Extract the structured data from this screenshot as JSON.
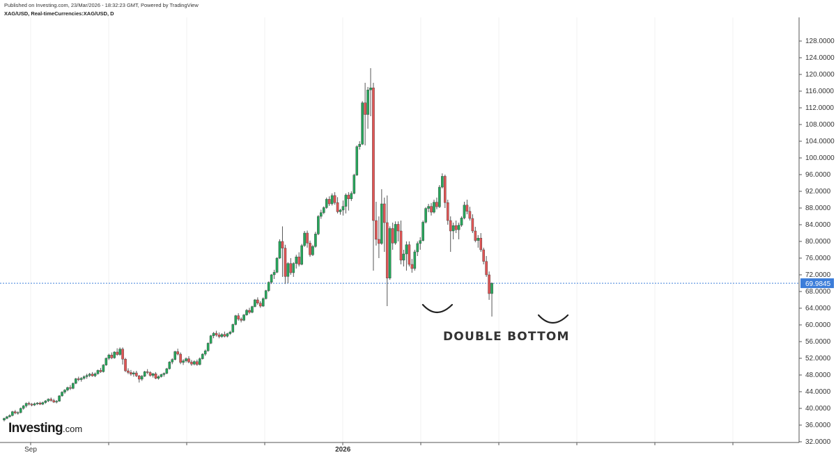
{
  "header": {
    "published": "Published on Investing.com, 23/Mar/2026 - 18:32:23 GMT, Powered by TradingView",
    "symbol_line": "XAG/USD, Real-timeCurrencies:XAG/USD, D"
  },
  "logo": {
    "main": "Investing",
    "suffix": ".com"
  },
  "annotation": {
    "text": "DOUBLE BOTTOM"
  },
  "colors": {
    "up": "#26a65b",
    "down": "#e05555",
    "wick": "#555555",
    "price_line": "#3c7dd9",
    "price_badge": "#3c7dd9",
    "axis_line": "#555555"
  },
  "chart_data": {
    "type": "candlestick",
    "title": "XAG/USD, Real-timeCurrencies:XAG/USD, D",
    "ylim": [
      32,
      130
    ],
    "y_ticks": [
      "32.0000",
      "36.0000",
      "40.0000",
      "44.0000",
      "48.0000",
      "52.0000",
      "56.0000",
      "60.0000",
      "64.0000",
      "68.0000",
      "72.0000",
      "76.0000",
      "80.0000",
      "84.0000",
      "88.0000",
      "92.0000",
      "96.0000",
      "100.0000",
      "104.0000",
      "108.0000",
      "112.0000",
      "116.0000",
      "120.0000",
      "124.0000",
      "128.0000"
    ],
    "x_labels": [
      {
        "label": "Sep",
        "index": 0
      },
      {
        "label": "2026",
        "index": 40
      }
    ],
    "last_price": 69.9845,
    "last_price_label": "69.9845",
    "ohlc": [
      [
        37.2,
        37.8,
        36.9,
        37.6
      ],
      [
        37.6,
        38.2,
        37.4,
        38.0
      ],
      [
        38.0,
        38.6,
        37.8,
        38.3
      ],
      [
        38.3,
        39.4,
        38.1,
        39.2
      ],
      [
        39.2,
        39.6,
        38.6,
        38.9
      ],
      [
        38.9,
        39.3,
        38.5,
        39.0
      ],
      [
        39.0,
        40.2,
        38.8,
        40.0
      ],
      [
        40.0,
        40.8,
        39.7,
        40.6
      ],
      [
        40.6,
        41.4,
        40.2,
        41.2
      ],
      [
        41.2,
        41.6,
        40.7,
        41.0
      ],
      [
        41.0,
        41.3,
        40.5,
        40.8
      ],
      [
        40.8,
        41.4,
        40.6,
        41.1
      ],
      [
        41.1,
        41.5,
        40.8,
        41.3
      ],
      [
        41.3,
        41.6,
        40.8,
        41.0
      ],
      [
        41.0,
        41.6,
        40.8,
        41.4
      ],
      [
        41.4,
        42.0,
        41.1,
        41.8
      ],
      [
        41.8,
        42.4,
        41.5,
        42.2
      ],
      [
        42.2,
        42.6,
        41.6,
        41.9
      ],
      [
        41.9,
        42.3,
        41.3,
        41.5
      ],
      [
        41.5,
        42.0,
        41.2,
        41.7
      ],
      [
        41.7,
        43.2,
        41.6,
        43.0
      ],
      [
        43.0,
        44.1,
        42.8,
        43.9
      ],
      [
        43.9,
        44.6,
        43.5,
        44.4
      ],
      [
        44.4,
        45.2,
        44.1,
        45.0
      ],
      [
        45.0,
        45.6,
        44.4,
        44.8
      ],
      [
        44.8,
        46.2,
        44.6,
        46.0
      ],
      [
        46.0,
        47.3,
        45.8,
        47.1
      ],
      [
        47.1,
        47.6,
        46.5,
        46.9
      ],
      [
        46.9,
        47.5,
        46.4,
        47.2
      ],
      [
        47.2,
        47.9,
        46.9,
        47.6
      ],
      [
        47.6,
        48.3,
        47.1,
        47.9
      ],
      [
        47.9,
        48.5,
        47.5,
        48.2
      ],
      [
        48.2,
        48.7,
        47.6,
        47.8
      ],
      [
        47.8,
        48.6,
        47.5,
        48.3
      ],
      [
        48.3,
        49.3,
        48.1,
        49.1
      ],
      [
        49.1,
        49.7,
        48.5,
        48.8
      ],
      [
        48.8,
        50.6,
        48.6,
        50.4
      ],
      [
        50.4,
        52.2,
        50.2,
        52.0
      ],
      [
        52.0,
        53.1,
        51.6,
        52.8
      ],
      [
        52.8,
        53.4,
        51.8,
        52.1
      ],
      [
        52.1,
        53.7,
        51.9,
        53.5
      ],
      [
        53.5,
        54.4,
        52.6,
        52.9
      ],
      [
        52.9,
        54.6,
        52.6,
        54.2
      ],
      [
        54.2,
        54.6,
        50.5,
        51.8
      ],
      [
        51.8,
        52.1,
        48.7,
        49.0
      ],
      [
        49.0,
        49.6,
        48.2,
        48.6
      ],
      [
        48.6,
        49.2,
        47.8,
        48.2
      ],
      [
        48.2,
        48.9,
        47.6,
        48.5
      ],
      [
        48.5,
        49.0,
        47.5,
        47.8
      ],
      [
        47.8,
        48.0,
        46.2,
        47.0
      ],
      [
        47.0,
        48.0,
        46.6,
        47.7
      ],
      [
        47.7,
        49.0,
        47.5,
        48.8
      ],
      [
        48.8,
        49.4,
        48.2,
        48.6
      ],
      [
        48.6,
        48.9,
        47.6,
        47.9
      ],
      [
        47.9,
        48.5,
        47.4,
        48.3
      ],
      [
        48.3,
        48.7,
        47.0,
        47.2
      ],
      [
        47.2,
        47.9,
        46.9,
        47.6
      ],
      [
        47.6,
        48.3,
        47.4,
        48.1
      ],
      [
        48.1,
        48.6,
        47.6,
        48.4
      ],
      [
        48.4,
        49.7,
        48.2,
        49.5
      ],
      [
        49.5,
        51.3,
        49.3,
        51.1
      ],
      [
        51.1,
        52.0,
        50.6,
        51.7
      ],
      [
        51.7,
        53.8,
        51.5,
        53.6
      ],
      [
        53.6,
        54.3,
        52.7,
        53.0
      ],
      [
        53.0,
        53.4,
        50.6,
        51.0
      ],
      [
        51.0,
        51.8,
        50.4,
        51.4
      ],
      [
        51.4,
        52.2,
        51.0,
        51.9
      ],
      [
        51.9,
        52.5,
        50.8,
        51.1
      ],
      [
        51.1,
        51.6,
        50.2,
        50.6
      ],
      [
        50.6,
        51.5,
        50.3,
        51.2
      ],
      [
        51.2,
        51.7,
        50.2,
        50.5
      ],
      [
        50.5,
        52.2,
        50.3,
        51.9
      ],
      [
        51.9,
        53.2,
        51.7,
        53.0
      ],
      [
        53.0,
        54.1,
        52.6,
        53.8
      ],
      [
        53.8,
        55.8,
        53.6,
        55.6
      ],
      [
        55.6,
        57.6,
        55.4,
        57.4
      ],
      [
        57.4,
        58.3,
        56.8,
        58.0
      ],
      [
        58.0,
        58.6,
        57.2,
        57.6
      ],
      [
        57.6,
        58.2,
        56.8,
        57.2
      ],
      [
        57.2,
        58.0,
        56.9,
        57.7
      ],
      [
        57.7,
        58.4,
        57.0,
        57.3
      ],
      [
        57.3,
        58.1,
        57.0,
        57.9
      ],
      [
        57.9,
        58.6,
        57.6,
        58.3
      ],
      [
        58.3,
        60.3,
        58.1,
        60.1
      ],
      [
        60.1,
        62.4,
        59.9,
        62.2
      ],
      [
        62.2,
        62.8,
        61.0,
        61.4
      ],
      [
        61.4,
        61.8,
        60.6,
        61.1
      ],
      [
        61.1,
        62.6,
        60.9,
        62.4
      ],
      [
        62.4,
        63.8,
        62.2,
        63.5
      ],
      [
        63.5,
        64.1,
        62.6,
        63.0
      ],
      [
        63.0,
        64.6,
        62.8,
        64.4
      ],
      [
        64.4,
        66.2,
        64.2,
        66.0
      ],
      [
        66.0,
        66.6,
        64.8,
        65.2
      ],
      [
        65.2,
        65.7,
        64.1,
        64.5
      ],
      [
        64.5,
        66.6,
        64.3,
        66.3
      ],
      [
        66.3,
        68.4,
        66.1,
        68.2
      ],
      [
        68.2,
        70.4,
        67.9,
        70.2
      ],
      [
        70.2,
        72.2,
        69.8,
        72.0
      ],
      [
        72.0,
        73.2,
        71.0,
        72.6
      ],
      [
        72.6,
        76.2,
        72.4,
        76.0
      ],
      [
        76.0,
        80.5,
        75.8,
        80.0
      ],
      [
        80.0,
        83.6,
        71.5,
        78.4
      ],
      [
        78.4,
        79.2,
        69.8,
        71.6
      ],
      [
        71.6,
        75.0,
        70.0,
        74.7
      ],
      [
        74.7,
        76.0,
        72.0,
        72.5
      ],
      [
        72.5,
        75.0,
        71.5,
        74.7
      ],
      [
        74.7,
        76.8,
        73.5,
        76.3
      ],
      [
        76.3,
        77.4,
        74.0,
        74.5
      ],
      [
        74.5,
        79.4,
        74.3,
        79.0
      ],
      [
        79.0,
        82.5,
        78.7,
        82.0
      ],
      [
        82.0,
        82.6,
        78.5,
        79.6
      ],
      [
        79.6,
        80.2,
        76.3,
        76.8
      ],
      [
        76.8,
        79.2,
        76.5,
        78.8
      ],
      [
        78.8,
        82.3,
        78.5,
        81.8
      ],
      [
        81.8,
        86.3,
        81.5,
        86.0
      ],
      [
        86.0,
        87.6,
        85.4,
        86.9
      ],
      [
        86.9,
        88.4,
        86.5,
        88.1
      ],
      [
        88.1,
        90.5,
        87.8,
        90.1
      ],
      [
        90.1,
        90.8,
        88.5,
        89.0
      ],
      [
        89.0,
        91.5,
        88.6,
        91.0
      ],
      [
        91.0,
        91.8,
        88.8,
        89.3
      ],
      [
        89.3,
        90.6,
        86.7,
        87.1
      ],
      [
        87.1,
        87.8,
        86.4,
        87.5
      ],
      [
        87.5,
        89.8,
        86.2,
        88.4
      ],
      [
        88.4,
        91.5,
        86.7,
        91.1
      ],
      [
        91.1,
        91.8,
        87.4,
        90.2
      ],
      [
        90.2,
        92.0,
        89.7,
        91.5
      ],
      [
        91.5,
        96.2,
        91.3,
        95.9
      ],
      [
        95.9,
        103.0,
        95.7,
        102.7
      ],
      [
        102.7,
        104.0,
        102.0,
        103.3
      ],
      [
        103.3,
        113.6,
        103.1,
        113.2
      ],
      [
        113.2,
        118.0,
        103.0,
        110.4
      ],
      [
        110.4,
        117.0,
        107.0,
        116.3
      ],
      [
        116.3,
        121.5,
        110.0,
        116.8
      ],
      [
        116.8,
        118.0,
        73.0,
        85.0
      ],
      [
        85.0,
        89.5,
        79.0,
        80.5
      ],
      [
        80.5,
        86.0,
        76.0,
        79.5
      ],
      [
        79.5,
        92.5,
        79.2,
        89.0
      ],
      [
        89.0,
        90.5,
        77.5,
        84.5
      ],
      [
        84.5,
        91.0,
        64.5,
        71.2
      ],
      [
        71.2,
        83.6,
        70.8,
        83.1
      ],
      [
        83.1,
        84.5,
        78.0,
        79.6
      ],
      [
        79.6,
        84.8,
        79.2,
        84.1
      ],
      [
        84.1,
        84.8,
        80.0,
        82.5
      ],
      [
        82.5,
        85.0,
        74.5,
        75.5
      ],
      [
        75.5,
        78.0,
        74.0,
        77.0
      ],
      [
        77.0,
        80.0,
        73.0,
        79.2
      ],
      [
        79.2,
        80.0,
        74.0,
        74.5
      ],
      [
        74.5,
        75.8,
        72.5,
        73.5
      ],
      [
        73.5,
        78.0,
        73.0,
        77.5
      ],
      [
        77.5,
        80.0,
        76.5,
        79.5
      ],
      [
        79.5,
        81.0,
        78.0,
        80.2
      ],
      [
        80.2,
        85.0,
        80.0,
        84.6
      ],
      [
        84.6,
        88.2,
        84.3,
        87.9
      ],
      [
        87.9,
        89.0,
        87.0,
        88.4
      ],
      [
        88.4,
        89.2,
        86.2,
        87.0
      ],
      [
        87.0,
        90.0,
        86.7,
        89.4
      ],
      [
        89.4,
        90.5,
        87.7,
        88.3
      ],
      [
        88.3,
        93.5,
        88.0,
        93.0
      ],
      [
        93.0,
        96.3,
        92.7,
        95.6
      ],
      [
        95.6,
        96.0,
        88.0,
        89.3
      ],
      [
        89.3,
        90.0,
        84.0,
        85.0
      ],
      [
        85.0,
        86.0,
        77.5,
        82.5
      ],
      [
        82.5,
        84.5,
        80.5,
        83.8
      ],
      [
        83.8,
        85.0,
        82.0,
        82.8
      ],
      [
        82.8,
        84.5,
        80.5,
        83.9
      ],
      [
        83.9,
        86.0,
        83.5,
        85.6
      ],
      [
        85.6,
        89.5,
        85.3,
        88.7
      ],
      [
        88.7,
        90.0,
        86.5,
        87.2
      ],
      [
        87.2,
        88.3,
        85.0,
        85.5
      ],
      [
        85.5,
        86.5,
        82.0,
        82.5
      ],
      [
        82.5,
        83.5,
        79.8,
        80.2
      ],
      [
        80.2,
        81.5,
        78.5,
        80.8
      ],
      [
        80.8,
        82.0,
        77.5,
        78.0
      ],
      [
        78.0,
        78.5,
        74.5,
        75.2
      ],
      [
        75.2,
        76.5,
        71.5,
        72.0
      ],
      [
        72.0,
        72.8,
        66.0,
        67.5
      ],
      [
        67.5,
        70.2,
        62.0,
        69.98
      ]
    ]
  }
}
